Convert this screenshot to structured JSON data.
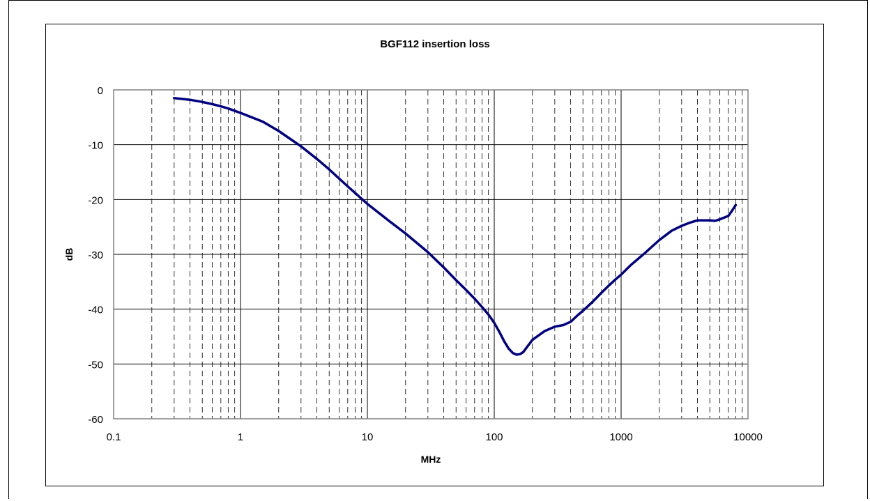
{
  "chart_data": {
    "type": "line",
    "title": "BGF112 insertion loss",
    "xlabel": "MHz",
    "ylabel": "dB",
    "x_scale": "log",
    "xlim": [
      0.1,
      10000
    ],
    "ylim": [
      -60,
      0
    ],
    "x_ticks": [
      "0.1",
      "1",
      "10",
      "100",
      "1000",
      "10000"
    ],
    "y_ticks": [
      "0",
      "-10",
      "-20",
      "-30",
      "-40",
      "-50",
      "-60"
    ],
    "grid": true,
    "series": [
      {
        "color": "#000080",
        "points": [
          [
            0.3,
            -1.5
          ],
          [
            0.4,
            -1.8
          ],
          [
            0.5,
            -2.2
          ],
          [
            0.6,
            -2.6
          ],
          [
            0.7,
            -3.0
          ],
          [
            0.8,
            -3.4
          ],
          [
            1,
            -4.2
          ],
          [
            1.5,
            -5.8
          ],
          [
            2,
            -7.5
          ],
          [
            3,
            -10.3
          ],
          [
            4,
            -12.6
          ],
          [
            5,
            -14.5
          ],
          [
            6,
            -16.2
          ],
          [
            7,
            -17.6
          ],
          [
            8,
            -18.8
          ],
          [
            10,
            -20.8
          ],
          [
            15,
            -24.0
          ],
          [
            20,
            -26.2
          ],
          [
            30,
            -29.6
          ],
          [
            40,
            -32.4
          ],
          [
            50,
            -34.7
          ],
          [
            60,
            -36.5
          ],
          [
            70,
            -38.1
          ],
          [
            80,
            -39.6
          ],
          [
            90,
            -41.0
          ],
          [
            100,
            -42.5
          ],
          [
            110,
            -44.2
          ],
          [
            120,
            -45.9
          ],
          [
            130,
            -47.2
          ],
          [
            140,
            -48.0
          ],
          [
            150,
            -48.3
          ],
          [
            160,
            -48.2
          ],
          [
            170,
            -47.8
          ],
          [
            180,
            -47.0
          ],
          [
            200,
            -45.6
          ],
          [
            250,
            -44.0
          ],
          [
            300,
            -43.2
          ],
          [
            350,
            -42.9
          ],
          [
            400,
            -42.3
          ],
          [
            450,
            -41.2
          ],
          [
            500,
            -40.3
          ],
          [
            600,
            -38.6
          ],
          [
            700,
            -37.0
          ],
          [
            800,
            -35.7
          ],
          [
            900,
            -34.6
          ],
          [
            1000,
            -33.7
          ],
          [
            1200,
            -31.9
          ],
          [
            1500,
            -30.0
          ],
          [
            2000,
            -27.4
          ],
          [
            2500,
            -25.7
          ],
          [
            3000,
            -24.8
          ],
          [
            3500,
            -24.2
          ],
          [
            4000,
            -23.8
          ],
          [
            5000,
            -23.8
          ],
          [
            5500,
            -23.9
          ],
          [
            6000,
            -23.6
          ],
          [
            7000,
            -23.0
          ],
          [
            7500,
            -22.0
          ],
          [
            8000,
            -21.0
          ]
        ]
      }
    ]
  }
}
